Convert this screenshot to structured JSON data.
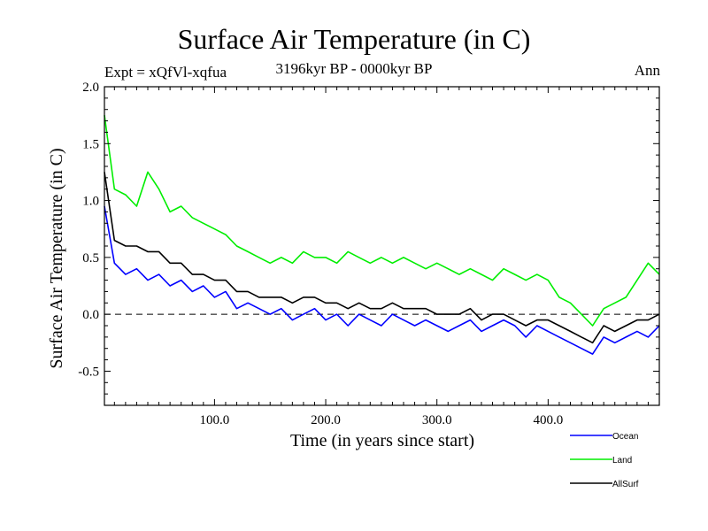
{
  "header": {
    "title": "Surface Air Temperature (in C)",
    "subtitle": "3196kyr BP - 0000kyr BP",
    "expt": "Expt = xQfVl-xqfua",
    "season": "Ann"
  },
  "chart_data": {
    "type": "line",
    "title": "Surface Air Temperature (in C)",
    "xlabel": "Time (in years since start)",
    "ylabel": "Surface Air Temperature (in C)",
    "xlim": [
      1,
      500
    ],
    "ylim": [
      -0.8,
      2.0
    ],
    "xticks": [
      100,
      200,
      300,
      400
    ],
    "xtick_labels": [
      "100.0",
      "200.0",
      "300.0",
      "400.0"
    ],
    "yticks": [
      -0.5,
      0.0,
      0.5,
      1.0,
      1.5,
      2.0
    ],
    "ytick_labels": [
      "-0.5",
      "0.0",
      "0.5",
      "1.0",
      "1.5",
      "2.0"
    ],
    "reference_line": {
      "y": 0.0,
      "style": "dashed"
    },
    "legend_position": "bottom-right",
    "x": [
      1,
      10,
      20,
      30,
      40,
      50,
      60,
      70,
      80,
      90,
      100,
      110,
      120,
      130,
      140,
      150,
      160,
      170,
      180,
      190,
      200,
      210,
      220,
      230,
      240,
      250,
      260,
      270,
      280,
      290,
      300,
      310,
      320,
      330,
      340,
      350,
      360,
      370,
      380,
      390,
      400,
      410,
      420,
      430,
      440,
      450,
      460,
      470,
      480,
      490,
      500
    ],
    "series": [
      {
        "name": "Ocean",
        "color": "#0000ff",
        "values": [
          0.95,
          0.45,
          0.35,
          0.4,
          0.3,
          0.35,
          0.25,
          0.3,
          0.2,
          0.25,
          0.15,
          0.2,
          0.05,
          0.1,
          0.05,
          0.0,
          0.05,
          -0.05,
          0.0,
          0.05,
          -0.05,
          0.0,
          -0.1,
          0.0,
          -0.05,
          -0.1,
          0.0,
          -0.05,
          -0.1,
          -0.05,
          -0.1,
          -0.15,
          -0.1,
          -0.05,
          -0.15,
          -0.1,
          -0.05,
          -0.1,
          -0.2,
          -0.1,
          -0.15,
          -0.2,
          -0.25,
          -0.3,
          -0.35,
          -0.2,
          -0.25,
          -0.2,
          -0.15,
          -0.2,
          -0.1
        ]
      },
      {
        "name": "Land",
        "color": "#00ee00",
        "values": [
          1.75,
          1.1,
          1.05,
          0.95,
          1.25,
          1.1,
          0.9,
          0.95,
          0.85,
          0.8,
          0.75,
          0.7,
          0.6,
          0.55,
          0.5,
          0.45,
          0.5,
          0.45,
          0.55,
          0.5,
          0.5,
          0.45,
          0.55,
          0.5,
          0.45,
          0.5,
          0.45,
          0.5,
          0.45,
          0.4,
          0.45,
          0.4,
          0.35,
          0.4,
          0.35,
          0.3,
          0.4,
          0.35,
          0.3,
          0.35,
          0.3,
          0.15,
          0.1,
          0.0,
          -0.1,
          0.05,
          0.1,
          0.15,
          0.3,
          0.45,
          0.35
        ]
      },
      {
        "name": "AllSurf",
        "color": "#000000",
        "values": [
          1.25,
          0.65,
          0.6,
          0.6,
          0.55,
          0.55,
          0.45,
          0.45,
          0.35,
          0.35,
          0.3,
          0.3,
          0.2,
          0.2,
          0.15,
          0.15,
          0.15,
          0.1,
          0.15,
          0.15,
          0.1,
          0.1,
          0.05,
          0.1,
          0.05,
          0.05,
          0.1,
          0.05,
          0.05,
          0.05,
          0.0,
          0.0,
          0.0,
          0.05,
          -0.05,
          0.0,
          0.0,
          -0.05,
          -0.1,
          -0.05,
          -0.05,
          -0.1,
          -0.15,
          -0.2,
          -0.25,
          -0.1,
          -0.15,
          -0.1,
          -0.05,
          -0.05,
          0.0
        ]
      }
    ]
  }
}
